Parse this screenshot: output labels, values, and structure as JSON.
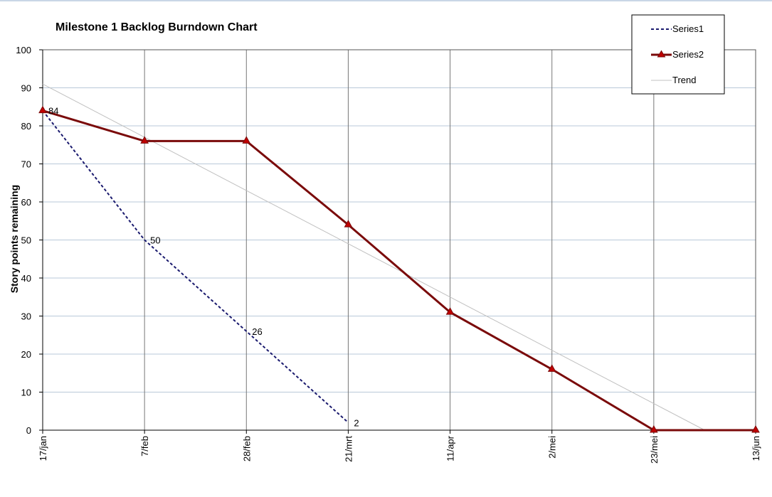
{
  "chart_data": {
    "type": "line",
    "title": "Milestone 1 Backlog Burndown Chart",
    "ylabel": "Story points remaining",
    "xlabel": "",
    "categories": [
      "17/jan",
      "7/feb",
      "28/feb",
      "21/mrt",
      "11/apr",
      "2/mei",
      "23/mei",
      "13/jun"
    ],
    "ylim": [
      0,
      100
    ],
    "yticks": [
      0,
      10,
      20,
      30,
      40,
      50,
      60,
      70,
      80,
      90,
      100
    ],
    "grid": true,
    "legend_position": "top-right",
    "series": [
      {
        "name": "Series1",
        "style": "dashed",
        "color": "#1a1a6e",
        "values": [
          84,
          50,
          26,
          2,
          null,
          null,
          null,
          null
        ],
        "data_labels": [
          "84",
          "50",
          "26",
          "2"
        ]
      },
      {
        "name": "Series2",
        "style": "solid-triangle-markers",
        "color": "#7a0a0a",
        "values": [
          84,
          76,
          76,
          54,
          31,
          16,
          0,
          0
        ]
      },
      {
        "name": "Trend",
        "style": "thin",
        "color": "#c0c0c0",
        "points": [
          [
            0,
            91
          ],
          [
            6.5,
            0
          ]
        ]
      }
    ]
  }
}
